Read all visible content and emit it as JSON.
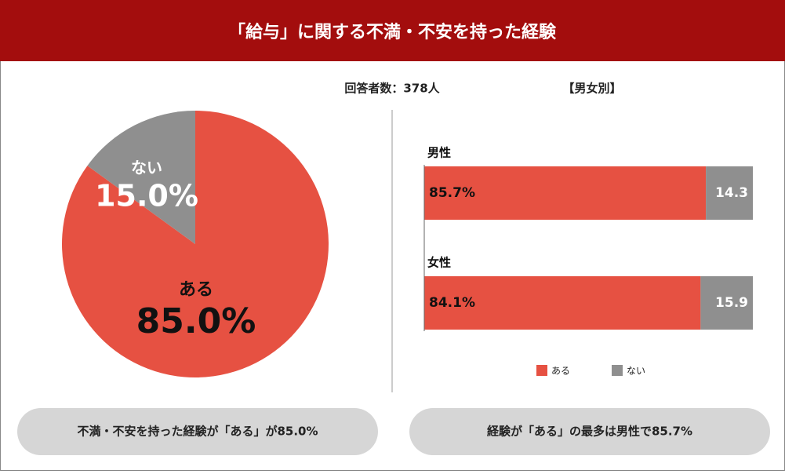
{
  "header": {
    "title": "「給与」に関する不満・不安を持った経験"
  },
  "respondents": "回答者数：378人",
  "chart_data": [
    {
      "type": "pie",
      "categories": [
        "ある",
        "ない"
      ],
      "values": [
        85.0,
        15.0
      ],
      "value_labels": [
        "85.0%",
        "15.0%"
      ],
      "colors": [
        "#e65142",
        "#8f8f8f"
      ]
    },
    {
      "type": "bar",
      "subtitle": "【男女別】",
      "orientation": "horizontal",
      "stacked": true,
      "categories": [
        "男性",
        "女性"
      ],
      "series": [
        {
          "name": "ある",
          "color": "#e65142",
          "values": [
            85.7,
            84.1
          ],
          "value_labels": [
            "85.7%",
            "84.1%"
          ]
        },
        {
          "name": "ない",
          "color": "#8f8f8f",
          "values": [
            14.3,
            15.9
          ]
        }
      ],
      "xlim": [
        0,
        100
      ]
    }
  ],
  "summaries": [
    "不満・不安を持った経験が「ある」が85.0%",
    "経験が「ある」の最多は男性で85.7%"
  ]
}
